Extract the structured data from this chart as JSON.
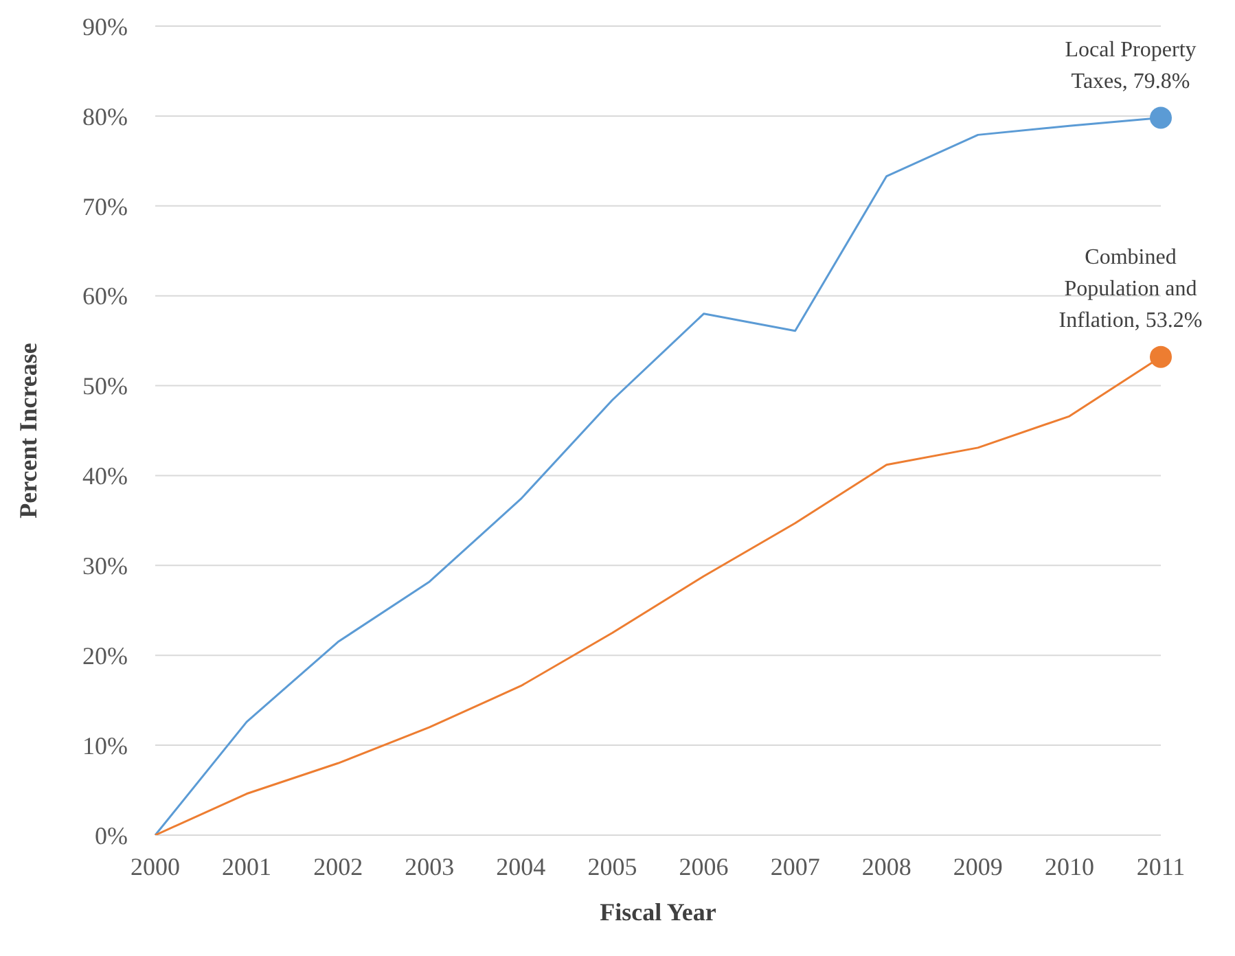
{
  "chart_data": {
    "type": "line",
    "xlabel": "Fiscal Year",
    "ylabel": "Percent Increase",
    "categories": [
      "2000",
      "2001",
      "2002",
      "2003",
      "2004",
      "2005",
      "2006",
      "2007",
      "2008",
      "2009",
      "2010",
      "2011"
    ],
    "series": [
      {
        "color": "#5b9bd5",
        "values": [
          0,
          12.6,
          21.5,
          28.2,
          37.4,
          48.4,
          58.0,
          56.1,
          73.3,
          77.9,
          78.9,
          79.8
        ]
      },
      {
        "color": "#ed7d31",
        "values": [
          0,
          4.6,
          8.0,
          12.0,
          16.6,
          22.5,
          28.8,
          34.7,
          41.2,
          43.1,
          46.6,
          53.2
        ]
      }
    ],
    "annotations": [
      {
        "text": "Local Property Taxes, 79.8%",
        "x": "2011",
        "y": 79.8
      },
      {
        "text": "Combined Population and Inflation, 53.2%",
        "x": "2011",
        "y": 53.2
      }
    ],
    "ylim": [
      0,
      90
    ],
    "yticks": [
      {
        "value": 0,
        "label": "0%"
      },
      {
        "value": 10,
        "label": "10%"
      },
      {
        "value": 20,
        "label": "20%"
      },
      {
        "value": 30,
        "label": "30%"
      },
      {
        "value": 40,
        "label": "40%"
      },
      {
        "value": 50,
        "label": "50%"
      },
      {
        "value": 60,
        "label": "60%"
      },
      {
        "value": 70,
        "label": "70%"
      },
      {
        "value": 80,
        "label": "80%"
      },
      {
        "value": 90,
        "label": "90%"
      }
    ],
    "grid": "y",
    "legend": false,
    "marker": "none",
    "line_style": "solid"
  }
}
